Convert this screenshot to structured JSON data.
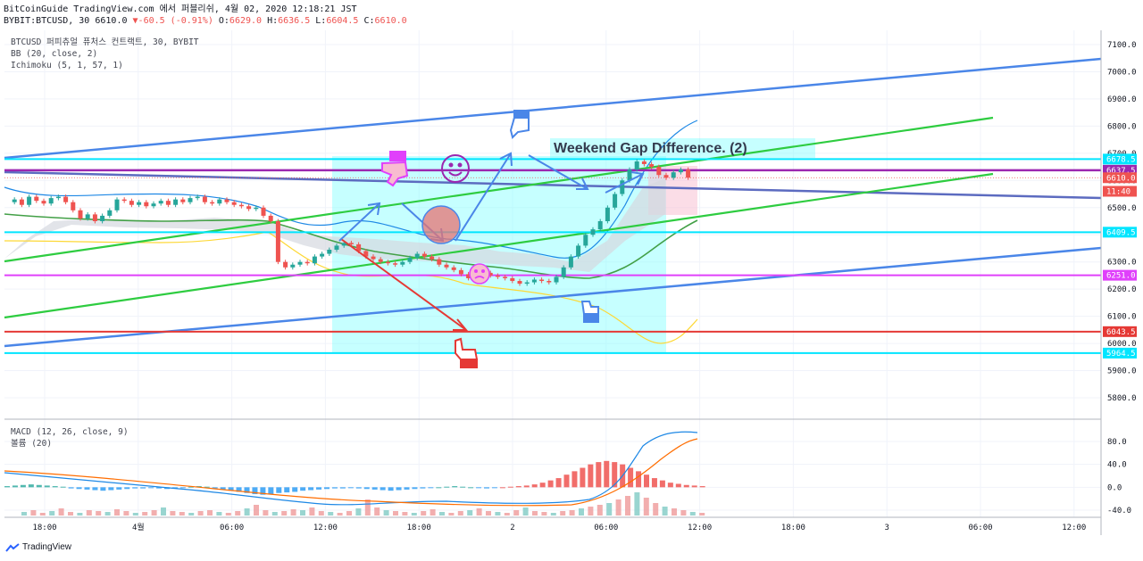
{
  "header": {
    "line1": "BitCoinGuide TradingView.com 에서 퍼블리쉬, 4월 02, 2020 12:18:21 JST",
    "symbol": "BYBIT:BTCUSD, 30",
    "last": "6610.0",
    "change": "-60.5 (-0.91%)",
    "open_label": "O:",
    "open": "6629.0",
    "high_label": "H:",
    "high": "6636.5",
    "low_label": "L:",
    "low": "6604.5",
    "close_label": "C:",
    "close": "6610.0"
  },
  "legend": {
    "title": "BTCUSD 퍼피츄얼 퓨처스 컨트랙트, 30, BYBIT",
    "bb": "BB (20, close, 2)",
    "ichimoku": "Ichimoku (5, 1, 57, 1)",
    "macd": "MACD (12, 26, close, 9)",
    "volume": "볼륨 (20)"
  },
  "annotation_text": "Weekend Gap Difference. (2)",
  "brand": "TradingView",
  "colors": {
    "up": "#26a69a",
    "down": "#ef5350",
    "channel": "#4a86e8",
    "green_line": "#2ecc40",
    "purple": "#9c27b0",
    "magenta": "#e040fb",
    "red_level": "#e53935",
    "cyan_level": "#00e5ff",
    "box": "#80ffff"
  },
  "chart_data": [
    {
      "type": "candlestick",
      "price_axis": {
        "range": [
          5720,
          7130
        ],
        "ticks": [
          "7100.0",
          "7000.0",
          "6900.0",
          "6800.0",
          "6700.0",
          "6600.0",
          "6500.0",
          "6400.0",
          "6300.0",
          "6200.0",
          "6100.0",
          "6000.0",
          "5900.0",
          "5800.0"
        ]
      },
      "price_labels": [
        {
          "value": 6678.5,
          "text": "6678.5",
          "color": "#00e5ff"
        },
        {
          "value": 6637.5,
          "text": "6637.5",
          "color": "#9c27b0"
        },
        {
          "value": 6610.0,
          "text": "6610.0",
          "color": "#ef5350"
        },
        {
          "value": 6560,
          "text": "11:40",
          "color": "#ef5350"
        },
        {
          "value": 6409.5,
          "text": "6409.5",
          "color": "#00e5ff"
        },
        {
          "value": 6251.0,
          "text": "6251.0",
          "color": "#e040fb"
        },
        {
          "value": 6043.5,
          "text": "6043.5",
          "color": "#e53935"
        },
        {
          "value": 5964.5,
          "text": "5964.5",
          "color": "#00e5ff"
        }
      ],
      "time_axis": [
        "18:00",
        "4월",
        "06:00",
        "12:00",
        "18:00",
        "2",
        "06:00",
        "12:00",
        "18:00",
        "3",
        "06:00",
        "12:00"
      ]
    },
    {
      "type": "macd",
      "range": [
        -50,
        110
      ],
      "ticks": [
        "80.0",
        "40.0",
        "0.0",
        "-40.0"
      ]
    }
  ]
}
